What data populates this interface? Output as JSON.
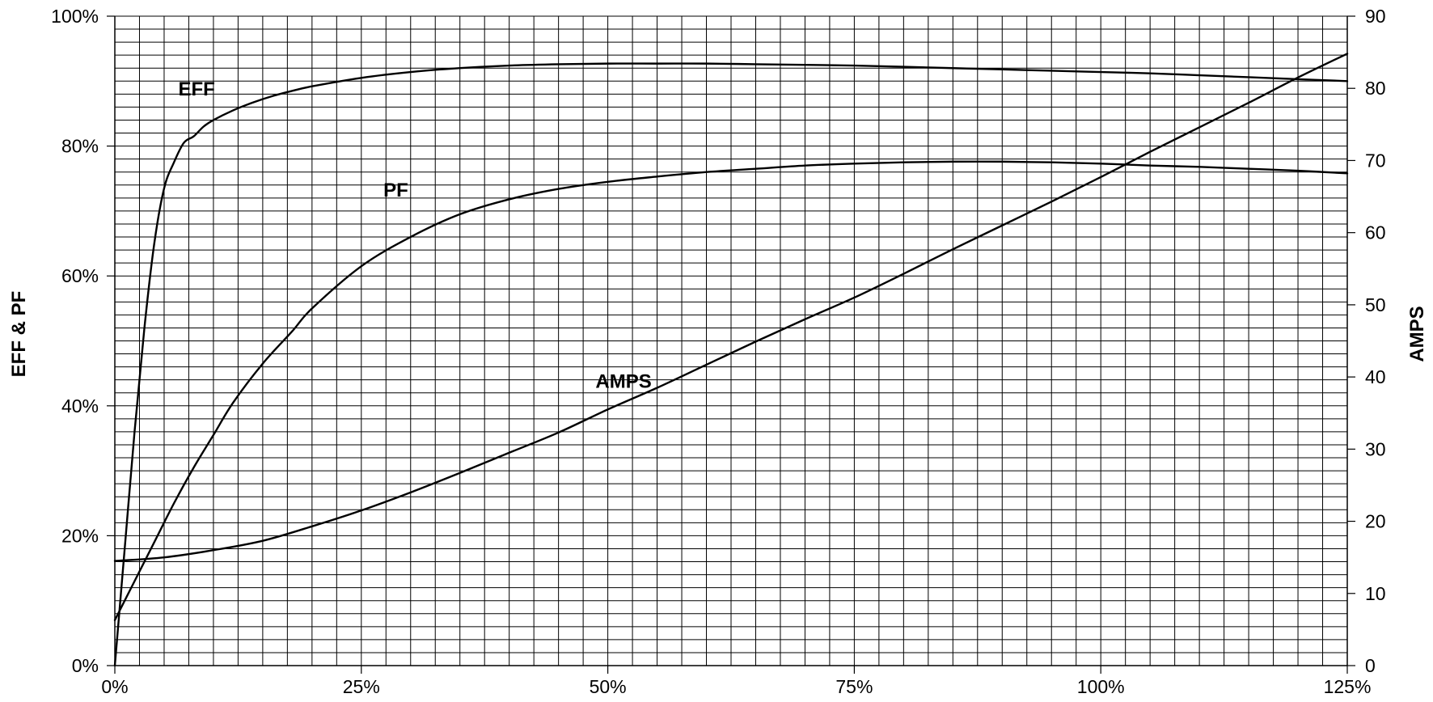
{
  "chart_data": {
    "type": "line",
    "title": "",
    "xlabel": "",
    "ylabel": "EFF & PF",
    "y2label": "AMPS",
    "xlim": [
      0,
      125
    ],
    "ylim": [
      0,
      100
    ],
    "y2lim": [
      0,
      90
    ],
    "grid": true,
    "x_ticks": [
      "0%",
      "25%",
      "50%",
      "75%",
      "100%",
      "125%"
    ],
    "y_ticks": [
      "0%",
      "20%",
      "40%",
      "60%",
      "80%",
      "100%"
    ],
    "y2_ticks": [
      "0",
      "10",
      "20",
      "30",
      "40",
      "50",
      "60",
      "70",
      "80",
      "90"
    ],
    "series": [
      {
        "name": "EFF",
        "axis": "left",
        "x": [
          0,
          1,
          2,
          3,
          4,
          5,
          6,
          7,
          8,
          9,
          10,
          12,
          14,
          16,
          18,
          20,
          25,
          30,
          35,
          40,
          45,
          50,
          55,
          60,
          65,
          70,
          75,
          80,
          85,
          90,
          95,
          100,
          105,
          110,
          115,
          120,
          125
        ],
        "y": [
          0,
          18,
          36,
          52,
          65,
          73.5,
          77.5,
          80.5,
          81.5,
          83,
          84,
          85.5,
          86.7,
          87.7,
          88.5,
          89.2,
          90.5,
          91.4,
          92,
          92.4,
          92.6,
          92.7,
          92.7,
          92.7,
          92.6,
          92.5,
          92.4,
          92.2,
          92,
          91.8,
          91.6,
          91.4,
          91.2,
          90.9,
          90.6,
          90.3,
          90
        ]
      },
      {
        "name": "PF",
        "axis": "left",
        "x": [
          0,
          2,
          4,
          6,
          8,
          10,
          12,
          15,
          18,
          20,
          25,
          30,
          35,
          40,
          45,
          50,
          55,
          60,
          65,
          70,
          75,
          80,
          85,
          90,
          95,
          100,
          105,
          110,
          115,
          120,
          125
        ],
        "y": [
          7,
          13,
          19,
          25,
          30.5,
          35.5,
          40.5,
          46.5,
          51.5,
          55,
          61.5,
          66,
          69.5,
          71.8,
          73.4,
          74.5,
          75.3,
          76,
          76.5,
          77,
          77.3,
          77.5,
          77.6,
          77.6,
          77.5,
          77.3,
          77,
          76.8,
          76.5,
          76.2,
          75.8
        ]
      },
      {
        "name": "AMPS",
        "axis": "right",
        "x": [
          0,
          5,
          10,
          15,
          20,
          25,
          30,
          35,
          40,
          45,
          50,
          55,
          60,
          65,
          70,
          75,
          80,
          85,
          90,
          95,
          100,
          105,
          110,
          115,
          120,
          125
        ],
        "y": [
          14.5,
          15,
          16,
          17.3,
          19.3,
          21.5,
          24,
          26.7,
          29.5,
          32.3,
          35.5,
          38.5,
          41.7,
          44.9,
          48,
          51,
          54.3,
          57.7,
          61,
          64.3,
          67.7,
          71.2,
          74.6,
          78,
          81.5,
          84.8
        ]
      }
    ]
  }
}
